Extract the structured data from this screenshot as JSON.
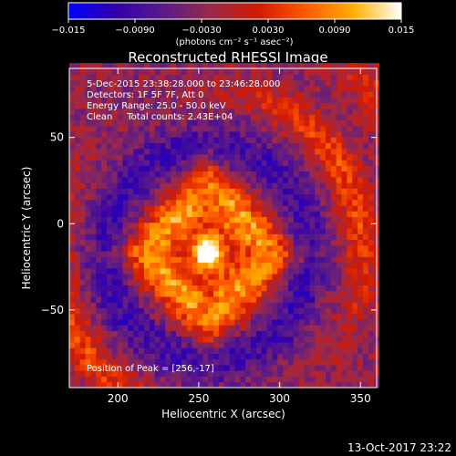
{
  "chart_data": {
    "type": "heatmap",
    "title": "Reconstructed RHESSI Image",
    "xlabel": "Heliocentric X (arcsec)",
    "ylabel": "Heliocentric Y (arcsec)",
    "xlim": [
      170,
      360
    ],
    "ylim": [
      -95,
      90
    ],
    "x_ticks": [
      200,
      250,
      300,
      350
    ],
    "x_tick_labels": [
      "200",
      "250",
      "300",
      "350"
    ],
    "y_ticks": [
      50,
      0,
      -50
    ],
    "y_tick_labels": [
      "50",
      "0",
      "−50"
    ],
    "colorbar": {
      "range": [
        -0.015,
        0.015
      ],
      "ticks": [
        -0.015,
        -0.009,
        -0.003,
        0.003,
        0.009,
        0.015
      ],
      "tick_labels": [
        "−0.015",
        "−0.0090",
        "−0.0030",
        "0.0030",
        "0.0090",
        "0.015"
      ],
      "unit_label": "(photons cm⁻² s⁻¹ asec⁻²)",
      "colors": [
        "#0000ff",
        "#3300aa",
        "#5a1a8a",
        "#9a2a4a",
        "#d41a00",
        "#ff5a00",
        "#ffb000",
        "#ffffff"
      ]
    },
    "annotations": {
      "time_range": "5-Dec-2015 23:38:28.000 to 23:46:28.000",
      "detectors": "Detectors: 1F 5F 7F, Att 0",
      "energy": "Energy Range: 25.0 - 50.0 keV",
      "clean": "Clean     Total counts: 2.43E+04",
      "peak": "Position of Peak = [256,-17]"
    },
    "peak_position": [
      256,
      -17
    ],
    "footer_date": "13-Oct-2017 23:22"
  }
}
